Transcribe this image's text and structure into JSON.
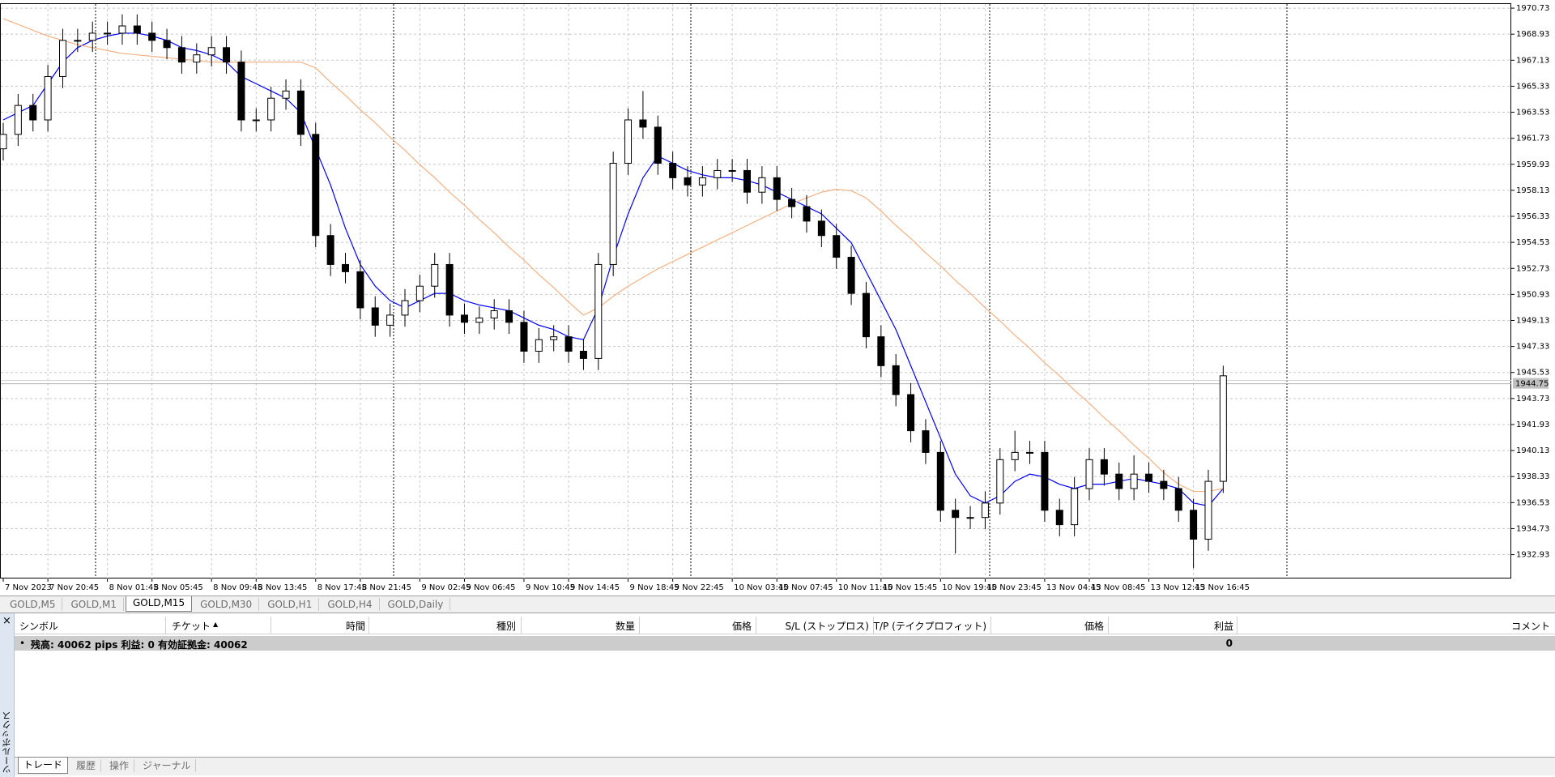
{
  "tabs": [
    "GOLD,M5",
    "GOLD,M1",
    "GOLD,M15",
    "GOLD,M30",
    "GOLD,H1",
    "GOLD,H4",
    "GOLD,Daily"
  ],
  "toolbox": {
    "title": "ツールボックス",
    "columns": [
      "シンボル",
      "チケット",
      "時間",
      "種別",
      "数量",
      "価格",
      "S/L (ストップロス)",
      "T/P (テイクプロフィット)",
      "価格",
      "利益",
      "コメント"
    ],
    "summary": "残高: 40062 pips  利益: 0  有効証拠金: 40062",
    "summary_profit": "0",
    "bottom_tabs": [
      "トレード",
      "履歴",
      "操作",
      "ジャーナル"
    ]
  },
  "chart_data": {
    "type": "candlestick",
    "bull_color": "#ffffff",
    "bear_color": "#000000",
    "grid": true,
    "categories": [
      "7 Nov 2023",
      null,
      null,
      "7 Nov 20:45",
      null,
      null,
      null,
      "8 Nov 01:45",
      null,
      null,
      "8 Nov 05:45",
      null,
      null,
      null,
      "8 Nov 09:45",
      null,
      null,
      "8 Nov 13:45",
      null,
      null,
      null,
      "8 Nov 17:45",
      null,
      null,
      "8 Nov 21:45",
      null,
      null,
      null,
      "9 Nov 02:45",
      null,
      null,
      "9 Nov 06:45",
      null,
      null,
      null,
      "9 Nov 10:45",
      null,
      null,
      "9 Nov 14:45",
      null,
      null,
      null,
      "9 Nov 18:45",
      null,
      null,
      "9 Nov 22:45",
      null,
      null,
      null,
      "10 Nov 03:45",
      null,
      null,
      "10 Nov 07:45",
      null,
      null,
      null,
      "10 Nov 11:45",
      null,
      null,
      "10 Nov 15:45",
      null,
      null,
      null,
      "10 Nov 19:45",
      null,
      null,
      "10 Nov 23:45",
      null,
      null,
      null,
      "13 Nov 04:45",
      null,
      null,
      "13 Nov 08:45",
      null,
      null,
      null,
      "13 Nov 12:45",
      null,
      null,
      "13 Nov 16:45",
      null,
      null
    ],
    "ohlc": [
      [
        1961,
        1962.8,
        1960.2,
        1962
      ],
      [
        1962,
        1964.8,
        1961.2,
        1964
      ],
      [
        1964,
        1964.8,
        1962.2,
        1963
      ],
      [
        1963,
        1966.8,
        1962.2,
        1966
      ],
      [
        1966,
        1969.3,
        1965.2,
        1968.5
      ],
      [
        1968.5,
        1969.3,
        1967.7,
        1968.5
      ],
      [
        1968.5,
        1969.8,
        1967.7,
        1969
      ],
      [
        1969,
        1969.8,
        1968.2,
        1969
      ],
      [
        1969,
        1970.3,
        1968.2,
        1969.5
      ],
      [
        1969.5,
        1970.3,
        1968.2,
        1969
      ],
      [
        1969,
        1969.8,
        1967.7,
        1968.5
      ],
      [
        1968.5,
        1969.3,
        1967.2,
        1968
      ],
      [
        1968,
        1968.8,
        1966.2,
        1967
      ],
      [
        1967,
        1968.3,
        1966.2,
        1967.5
      ],
      [
        1967.5,
        1968.8,
        1966.7,
        1968
      ],
      [
        1968,
        1968.8,
        1966.2,
        1967
      ],
      [
        1967,
        1967.8,
        1962.2,
        1963
      ],
      [
        1963,
        1963.8,
        1962.2,
        1963
      ],
      [
        1963,
        1965.3,
        1962.2,
        1964.5
      ],
      [
        1964.5,
        1965.8,
        1963.7,
        1965
      ],
      [
        1965,
        1965.8,
        1961.2,
        1962
      ],
      [
        1962,
        1962.8,
        1954.2,
        1955
      ],
      [
        1955,
        1955.8,
        1952.2,
        1953
      ],
      [
        1953,
        1953.8,
        1951.7,
        1952.5
      ],
      [
        1952.5,
        1953.3,
        1949.2,
        1950
      ],
      [
        1950,
        1950.8,
        1948,
        1948.8
      ],
      [
        1948.8,
        1950.3,
        1948,
        1949.5
      ],
      [
        1949.5,
        1951.3,
        1948.7,
        1950.5
      ],
      [
        1950.5,
        1952.3,
        1949.7,
        1951.5
      ],
      [
        1951.5,
        1953.8,
        1950.7,
        1953
      ],
      [
        1953,
        1953.8,
        1948.7,
        1949.5
      ],
      [
        1949.5,
        1950.3,
        1948.2,
        1949
      ],
      [
        1949,
        1950.1,
        1948.2,
        1949.3
      ],
      [
        1949.3,
        1950.6,
        1948.5,
        1949.8
      ],
      [
        1949.8,
        1950.6,
        1948.2,
        1949
      ],
      [
        1949,
        1949.8,
        1946.2,
        1947
      ],
      [
        1947,
        1948.6,
        1946.2,
        1947.8
      ],
      [
        1947.8,
        1948.8,
        1947,
        1948
      ],
      [
        1948,
        1948.8,
        1946.2,
        1947
      ],
      [
        1947,
        1947.8,
        1945.7,
        1946.5
      ],
      [
        1946.5,
        1953.8,
        1945.7,
        1953
      ],
      [
        1953,
        1960.8,
        1952.2,
        1960
      ],
      [
        1960,
        1963.8,
        1959.2,
        1963
      ],
      [
        1963,
        1965,
        1961.7,
        1962.5
      ],
      [
        1962.5,
        1963.3,
        1959.2,
        1960
      ],
      [
        1960,
        1960.8,
        1958.2,
        1959
      ],
      [
        1959,
        1959.8,
        1957.7,
        1958.5
      ],
      [
        1958.5,
        1959.8,
        1957.7,
        1959
      ],
      [
        1959,
        1960.3,
        1958.2,
        1959.5
      ],
      [
        1959.5,
        1960.3,
        1958.7,
        1959.5
      ],
      [
        1959.5,
        1960.3,
        1957.2,
        1958
      ],
      [
        1958,
        1959.8,
        1957.2,
        1959
      ],
      [
        1959,
        1959.8,
        1956.7,
        1957.5
      ],
      [
        1957.5,
        1958.3,
        1956.2,
        1957
      ],
      [
        1957,
        1957.8,
        1955.2,
        1956
      ],
      [
        1956,
        1956.8,
        1954.2,
        1955
      ],
      [
        1955,
        1955.8,
        1952.7,
        1953.5
      ],
      [
        1953.5,
        1954.3,
        1950.2,
        1951
      ],
      [
        1951,
        1951.8,
        1947.2,
        1948
      ],
      [
        1948,
        1948.8,
        1945.2,
        1946
      ],
      [
        1946,
        1946.8,
        1943.2,
        1944
      ],
      [
        1944,
        1944.8,
        1940.7,
        1941.5
      ],
      [
        1941.5,
        1942.3,
        1939.2,
        1940
      ],
      [
        1940,
        1940.8,
        1935.2,
        1936
      ],
      [
        1936,
        1936.8,
        1933,
        1935.5
      ],
      [
        1935.5,
        1936.3,
        1934.7,
        1935.5
      ],
      [
        1935.5,
        1937.3,
        1934.7,
        1936.5
      ],
      [
        1936.5,
        1940.3,
        1935.7,
        1939.5
      ],
      [
        1939.5,
        1941.5,
        1938.7,
        1940
      ],
      [
        1940,
        1940.8,
        1939.2,
        1940
      ],
      [
        1940,
        1940.8,
        1935.2,
        1936
      ],
      [
        1936,
        1936.8,
        1934.2,
        1935
      ],
      [
        1935,
        1938.3,
        1934.2,
        1937.5
      ],
      [
        1937.5,
        1940.3,
        1936.7,
        1939.5
      ],
      [
        1939.5,
        1940.3,
        1937.7,
        1938.5
      ],
      [
        1938.5,
        1939.3,
        1936.7,
        1937.5
      ],
      [
        1937.5,
        1939.8,
        1936.7,
        1938.5
      ],
      [
        1938.5,
        1939.3,
        1937.2,
        1938
      ],
      [
        1938,
        1938.8,
        1936.7,
        1937.5
      ],
      [
        1937.5,
        1938.3,
        1935.2,
        1936
      ],
      [
        1936,
        1936.8,
        1932,
        1934
      ],
      [
        1934,
        1938.8,
        1933.2,
        1938
      ],
      [
        1938,
        1946,
        1937.2,
        1945.3
      ]
    ],
    "ma_series": [
      {
        "color": "#0000ff",
        "values": [
          1963,
          1963.5,
          1964,
          1965.5,
          1967,
          1968,
          1968.5,
          1968.8,
          1969,
          1969,
          1968.8,
          1968.5,
          1968,
          1967.8,
          1967.5,
          1967,
          1966,
          1965.5,
          1965,
          1964.5,
          1963.5,
          1961,
          1958.5,
          1955.5,
          1953,
          1951.5,
          1950.5,
          1950,
          1950.5,
          1951,
          1951,
          1950.5,
          1950.2,
          1950,
          1949.8,
          1949.3,
          1948.8,
          1948.5,
          1948,
          1947.8,
          1950,
          1953.5,
          1956.5,
          1959,
          1960.5,
          1960,
          1959.5,
          1959.2,
          1959,
          1959,
          1958.8,
          1958.5,
          1958,
          1957.5,
          1957,
          1956.5,
          1955.5,
          1954.5,
          1952.5,
          1950.5,
          1948.5,
          1946,
          1943.5,
          1941,
          1938.5,
          1937,
          1936.5,
          1937,
          1938,
          1938.5,
          1938.3,
          1937.8,
          1937.5,
          1937.8,
          1937.8,
          1938,
          1938.2,
          1938,
          1937.8,
          1937.5,
          1936.5,
          1936.3,
          1937.5
        ]
      },
      {
        "color": "#f4b183",
        "values": [
          1970,
          1969.6,
          1969.2,
          1968.8,
          1968.5,
          1968.2,
          1968,
          1967.8,
          1967.6,
          1967.5,
          1967.4,
          1967.3,
          1967.2,
          1967.1,
          1967,
          1967,
          1967,
          1967,
          1967,
          1967,
          1967,
          1966.6,
          1965.6,
          1964.7,
          1963.7,
          1962.8,
          1961.8,
          1960.9,
          1959.9,
          1959,
          1958,
          1957.1,
          1956.1,
          1955.2,
          1954.2,
          1953.3,
          1952.3,
          1951.4,
          1950.4,
          1949.5,
          1950,
          1950.8,
          1951.5,
          1952.1,
          1952.7,
          1953.2,
          1953.7,
          1954.2,
          1954.7,
          1955.2,
          1955.7,
          1956.2,
          1956.7,
          1957.2,
          1957.6,
          1958,
          1958.2,
          1958.1,
          1957.6,
          1956.7,
          1955.7,
          1954.8,
          1953.8,
          1952.9,
          1951.9,
          1951,
          1950,
          1949.1,
          1948.1,
          1947.2,
          1946.2,
          1945.3,
          1944.3,
          1943.4,
          1942.4,
          1941.5,
          1940.5,
          1939.6,
          1938.6,
          1937.8,
          1937.3,
          1937.3,
          1937.5
        ]
      }
    ],
    "bid": 1944.75,
    "ylim": [
      1931.28,
      1971.07
    ],
    "yticks": [
      1970.73,
      1968.93,
      1967.13,
      1965.33,
      1963.53,
      1961.73,
      1959.93,
      1958.13,
      1956.33,
      1954.53,
      1952.73,
      1950.93,
      1949.13,
      1947.33,
      1945.53,
      1943.73,
      1941.93,
      1940.13,
      1938.33,
      1936.53,
      1934.73,
      1932.93
    ]
  }
}
